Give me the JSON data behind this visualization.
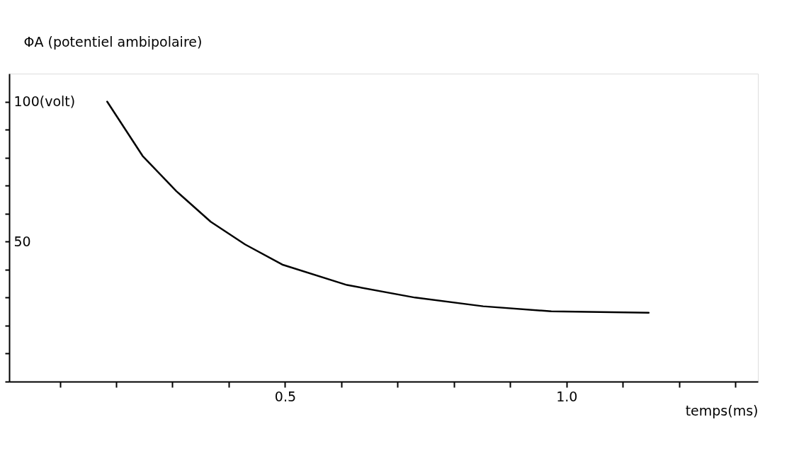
{
  "chart_data": {
    "type": "line",
    "ylabel": "ΦA (potentiel ambipolaire)",
    "xlabel": "temps(ms)",
    "x": [
      0.184,
      0.247,
      0.307,
      0.368,
      0.429,
      0.495,
      0.61,
      0.731,
      0.852,
      0.973,
      1.146
    ],
    "series": [
      {
        "color": "#000000",
        "values": [
          100,
          80.6,
          68,
          57.1,
          49,
          41.8,
          34.5,
          30,
          26.9,
          25.1,
          24.6
        ]
      }
    ],
    "xlim": [
      0.01,
      1.34
    ],
    "ylim": [
      0,
      110
    ],
    "xticks": [
      {
        "value": 0.1,
        "label": null
      },
      {
        "value": 0.2,
        "label": null
      },
      {
        "value": 0.3,
        "label": null
      },
      {
        "value": 0.4,
        "label": null
      },
      0.5,
      {
        "value": 0.6,
        "label": null
      },
      {
        "value": 0.7,
        "label": null
      },
      {
        "value": 0.8,
        "label": null
      },
      {
        "value": 0.9,
        "label": null
      },
      {
        "value": 1.0,
        "label": "1.0"
      },
      {
        "value": 1.1,
        "label": null
      },
      {
        "value": 1.2,
        "label": null
      },
      {
        "value": 1.3,
        "label": null
      }
    ],
    "yticks": [
      {
        "value": 0,
        "label": null
      },
      {
        "value": 10,
        "label": null
      },
      {
        "value": 20,
        "label": null
      },
      {
        "value": 30,
        "label": null
      },
      {
        "value": 40,
        "label": null
      },
      50,
      {
        "value": 60,
        "label": null
      },
      {
        "value": 70,
        "label": null
      },
      {
        "value": 80,
        "label": null
      },
      {
        "value": 90,
        "label": null
      },
      {
        "value": 100,
        "label": "100(volt)"
      }
    ],
    "grid": false,
    "marker": "none",
    "line_style": "solid"
  }
}
